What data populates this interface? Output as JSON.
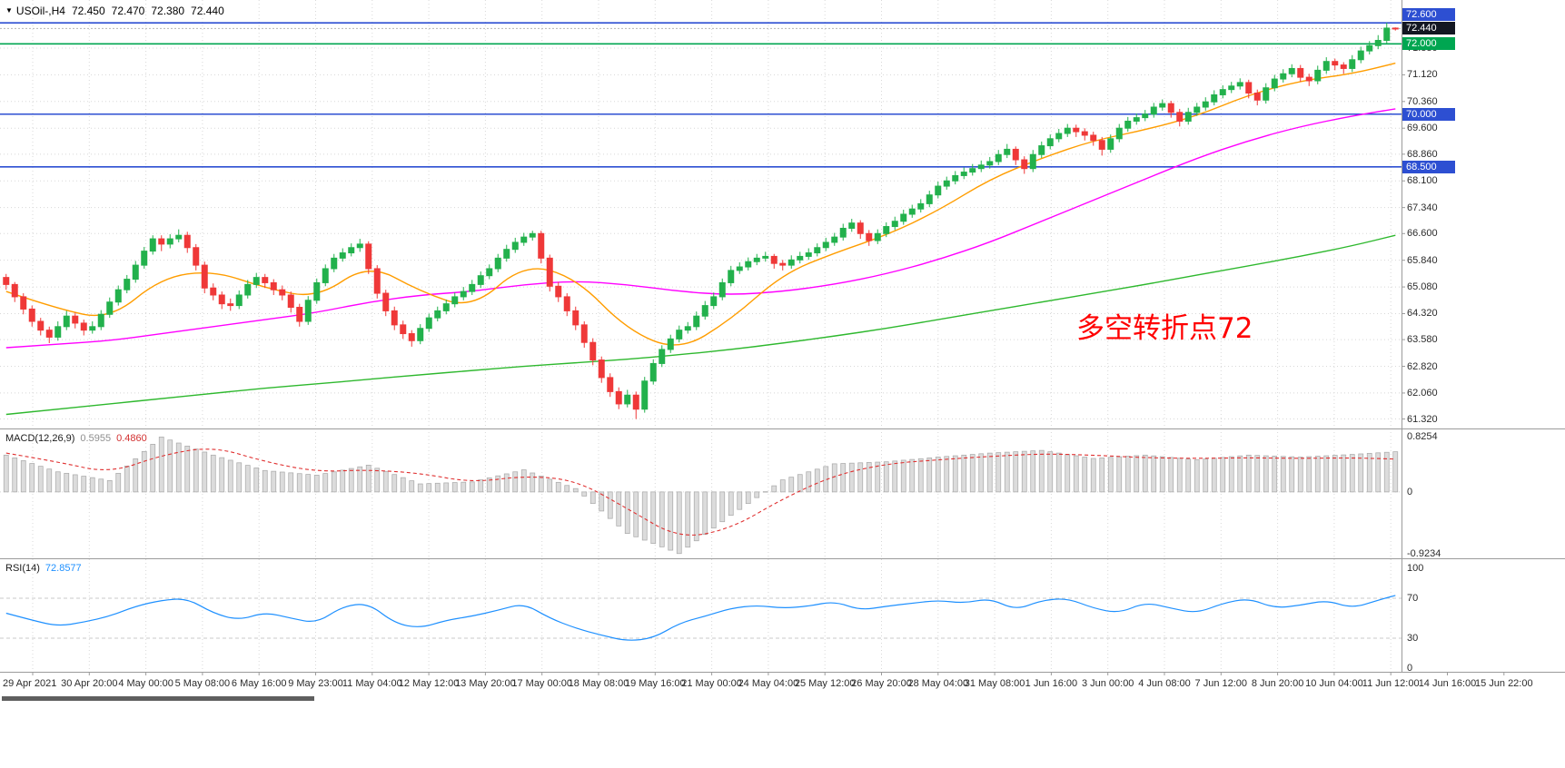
{
  "header": {
    "symbol_period": "USOil-,H4",
    "open": "72.450",
    "high": "72.470",
    "low": "72.380",
    "close": "72.440",
    "dropdown_icon": "▼"
  },
  "indicators": {
    "macd": {
      "name": "MACD(12,26,9)",
      "value_macd": "0.5955",
      "value_signal": "0.4860"
    },
    "rsi": {
      "name": "RSI(14)",
      "value": "72.8577"
    }
  },
  "annotation": {
    "text": "多空转折点72",
    "color": "#ff0000"
  },
  "palette": {
    "up": "#22b14c",
    "down": "#ef3838",
    "grid": "#d8d8d8",
    "axis_text": "#2b2b2b",
    "level_blue": "#2d4fd2",
    "level_green": "#00a651",
    "bid_badge": "#131722",
    "background": "#ffffff"
  },
  "chart_data": {
    "type": "candlestick+indicators",
    "symbol": "USOil-",
    "timeframe": "H4",
    "current_bar": {
      "open": 72.45,
      "high": 72.47,
      "low": 72.38,
      "close": 72.44
    },
    "axes": {
      "main": {
        "max": 73.25,
        "min": 61.05,
        "grid_labels": [
          71.88,
          71.12,
          70.36,
          69.6,
          68.86,
          68.1,
          67.34,
          66.6,
          65.84,
          65.08,
          64.32,
          63.58,
          62.82,
          62.06,
          61.32
        ]
      },
      "macd": {
        "max": 0.8254,
        "min": -0.9234,
        "labels": [
          0.8254,
          0,
          -0.9234
        ]
      },
      "rsi": {
        "labels": [
          100,
          70,
          30,
          0
        ],
        "levels": [
          70,
          30
        ]
      }
    },
    "badges": [
      {
        "label": "72.600",
        "value": 72.6,
        "bg": "#2d4fd2",
        "y": 16
      },
      {
        "label": "72.440",
        "value": 72.44,
        "bg": "#131722",
        "y": 31
      },
      {
        "label": "72.000",
        "value": 72.0,
        "bg": "#00a651"
      },
      {
        "label": "70.000",
        "value": 70.0,
        "bg": "#2d4fd2"
      },
      {
        "label": "68.500",
        "value": 68.5,
        "bg": "#2d4fd2"
      }
    ],
    "hlines": [
      {
        "value": 72.6,
        "color": "#2d4fd2",
        "width": 1.6
      },
      {
        "value": 72.0,
        "color": "#00a651",
        "width": 1.6
      },
      {
        "value": 70.0,
        "color": "#2d4fd2",
        "width": 1.6
      },
      {
        "value": 68.5,
        "color": "#2d4fd2",
        "width": 1.6
      }
    ],
    "bid_line": {
      "value": 72.44,
      "color": "#b5b5b5"
    },
    "time_labels": [
      "29 Apr 2021",
      "30 Apr 20:00",
      "4 May 00:00",
      "5 May 08:00",
      "6 May 16:00",
      "9 May 23:00",
      "11 May 04:00",
      "12 May 12:00",
      "13 May 20:00",
      "17 May 00:00",
      "18 May 08:00",
      "19 May 16:00",
      "21 May 00:00",
      "24 May 04:00",
      "25 May 12:00",
      "26 May 20:00",
      "28 May 04:00",
      "31 May 08:00",
      "1 Jun 16:00",
      "3 Jun 00:00",
      "4 Jun 08:00",
      "7 Jun 12:00",
      "8 Jun 20:00",
      "10 Jun 04:00",
      "11 Jun 12:00",
      "14 Jun 16:00",
      "15 Jun 22:00"
    ],
    "candles": [
      [
        65.35,
        65.45,
        65.0,
        65.15
      ],
      [
        65.15,
        65.22,
        64.65,
        64.8
      ],
      [
        64.8,
        64.9,
        64.3,
        64.45
      ],
      [
        64.45,
        64.55,
        63.95,
        64.1
      ],
      [
        64.1,
        64.2,
        63.7,
        63.85
      ],
      [
        63.85,
        63.95,
        63.48,
        63.65
      ],
      [
        63.65,
        64.1,
        63.55,
        63.95
      ],
      [
        63.95,
        64.4,
        63.85,
        64.25
      ],
      [
        64.25,
        64.35,
        63.9,
        64.05
      ],
      [
        64.05,
        64.15,
        63.7,
        63.85
      ],
      [
        63.85,
        64.1,
        63.75,
        63.95
      ],
      [
        63.95,
        64.42,
        63.85,
        64.3
      ],
      [
        64.3,
        64.78,
        64.2,
        64.65
      ],
      [
        64.65,
        65.12,
        64.55,
        65.0
      ],
      [
        65.0,
        65.42,
        64.9,
        65.3
      ],
      [
        65.3,
        65.82,
        65.2,
        65.7
      ],
      [
        65.7,
        66.22,
        65.6,
        66.1
      ],
      [
        66.1,
        66.55,
        66.0,
        66.45
      ],
      [
        66.45,
        66.55,
        66.1,
        66.3
      ],
      [
        66.3,
        66.58,
        66.18,
        66.45
      ],
      [
        66.45,
        66.72,
        66.35,
        66.55
      ],
      [
        66.55,
        66.65,
        66.05,
        66.2
      ],
      [
        66.2,
        66.3,
        65.55,
        65.7
      ],
      [
        65.7,
        65.8,
        64.9,
        65.05
      ],
      [
        65.05,
        65.18,
        64.7,
        64.85
      ],
      [
        64.85,
        64.95,
        64.45,
        64.6
      ],
      [
        64.6,
        64.75,
        64.4,
        64.55
      ],
      [
        64.55,
        64.98,
        64.45,
        64.85
      ],
      [
        64.85,
        65.28,
        64.75,
        65.15
      ],
      [
        65.15,
        65.48,
        65.05,
        65.35
      ],
      [
        65.35,
        65.45,
        65.05,
        65.2
      ],
      [
        65.2,
        65.3,
        64.85,
        65.0
      ],
      [
        65.0,
        65.12,
        64.7,
        64.85
      ],
      [
        64.85,
        64.95,
        64.35,
        64.5
      ],
      [
        64.5,
        64.6,
        63.95,
        64.1
      ],
      [
        64.1,
        64.82,
        64.0,
        64.7
      ],
      [
        64.7,
        65.32,
        64.6,
        65.2
      ],
      [
        65.2,
        65.72,
        65.1,
        65.6
      ],
      [
        65.6,
        66.02,
        65.5,
        65.9
      ],
      [
        65.9,
        66.18,
        65.8,
        66.05
      ],
      [
        66.05,
        66.32,
        65.95,
        66.2
      ],
      [
        66.2,
        66.45,
        66.08,
        66.3
      ],
      [
        66.3,
        66.38,
        65.45,
        65.6
      ],
      [
        65.6,
        65.7,
        64.75,
        64.9
      ],
      [
        64.9,
        65.0,
        64.25,
        64.4
      ],
      [
        64.4,
        64.52,
        63.85,
        64.0
      ],
      [
        64.0,
        64.12,
        63.6,
        63.75
      ],
      [
        63.75,
        63.85,
        63.38,
        63.55
      ],
      [
        63.55,
        64.02,
        63.45,
        63.9
      ],
      [
        63.9,
        64.32,
        63.8,
        64.2
      ],
      [
        64.2,
        64.52,
        64.1,
        64.4
      ],
      [
        64.4,
        64.72,
        64.3,
        64.6
      ],
      [
        64.6,
        64.92,
        64.5,
        64.8
      ],
      [
        64.8,
        65.08,
        64.7,
        64.95
      ],
      [
        64.95,
        65.28,
        64.85,
        65.15
      ],
      [
        65.15,
        65.52,
        65.05,
        65.4
      ],
      [
        65.4,
        65.72,
        65.3,
        65.6
      ],
      [
        65.6,
        66.02,
        65.5,
        65.9
      ],
      [
        65.9,
        66.28,
        65.8,
        66.15
      ],
      [
        66.15,
        66.48,
        66.05,
        66.35
      ],
      [
        66.35,
        66.62,
        66.25,
        66.5
      ],
      [
        66.5,
        66.68,
        66.4,
        66.6
      ],
      [
        66.6,
        66.68,
        65.75,
        65.9
      ],
      [
        65.9,
        66.0,
        64.95,
        65.1
      ],
      [
        65.1,
        65.22,
        64.65,
        64.8
      ],
      [
        64.8,
        64.9,
        64.25,
        64.4
      ],
      [
        64.4,
        64.52,
        63.85,
        64.0
      ],
      [
        64.0,
        64.1,
        63.35,
        63.5
      ],
      [
        63.5,
        63.62,
        62.85,
        63.0
      ],
      [
        63.0,
        63.1,
        62.35,
        62.5
      ],
      [
        62.5,
        62.62,
        61.95,
        62.1
      ],
      [
        62.1,
        62.22,
        61.6,
        61.75
      ],
      [
        61.75,
        62.15,
        61.65,
        62.0
      ],
      [
        62.0,
        62.1,
        61.32,
        61.6
      ],
      [
        61.6,
        62.52,
        61.5,
        62.4
      ],
      [
        62.4,
        63.02,
        62.3,
        62.9
      ],
      [
        62.9,
        63.42,
        62.8,
        63.3
      ],
      [
        63.3,
        63.72,
        63.2,
        63.6
      ],
      [
        63.6,
        63.98,
        63.5,
        63.85
      ],
      [
        63.85,
        64.08,
        63.75,
        63.95
      ],
      [
        63.95,
        64.38,
        63.85,
        64.25
      ],
      [
        64.25,
        64.68,
        64.15,
        64.55
      ],
      [
        64.55,
        64.92,
        64.45,
        64.8
      ],
      [
        64.8,
        65.32,
        64.7,
        65.2
      ],
      [
        65.2,
        65.68,
        65.1,
        65.55
      ],
      [
        65.55,
        65.78,
        65.45,
        65.65
      ],
      [
        65.65,
        65.92,
        65.55,
        65.8
      ],
      [
        65.8,
        66.02,
        65.7,
        65.9
      ],
      [
        65.9,
        66.08,
        65.8,
        65.95
      ],
      [
        65.95,
        66.02,
        65.6,
        65.75
      ],
      [
        65.75,
        65.85,
        65.55,
        65.7
      ],
      [
        65.7,
        65.98,
        65.6,
        65.85
      ],
      [
        65.85,
        66.08,
        65.75,
        65.95
      ],
      [
        65.95,
        66.18,
        65.85,
        66.05
      ],
      [
        66.05,
        66.32,
        65.95,
        66.2
      ],
      [
        66.2,
        66.48,
        66.1,
        66.35
      ],
      [
        66.35,
        66.62,
        66.25,
        66.5
      ],
      [
        66.5,
        66.88,
        66.4,
        66.75
      ],
      [
        66.75,
        67.02,
        66.65,
        66.9
      ],
      [
        66.9,
        66.98,
        66.45,
        66.6
      ],
      [
        66.6,
        66.7,
        66.25,
        66.4
      ],
      [
        66.4,
        66.72,
        66.3,
        66.6
      ],
      [
        66.6,
        66.92,
        66.5,
        66.8
      ],
      [
        66.8,
        67.08,
        66.7,
        66.95
      ],
      [
        66.95,
        67.28,
        66.85,
        67.15
      ],
      [
        67.15,
        67.42,
        67.05,
        67.3
      ],
      [
        67.3,
        67.58,
        67.2,
        67.45
      ],
      [
        67.45,
        67.82,
        67.35,
        67.7
      ],
      [
        67.7,
        68.08,
        67.6,
        67.95
      ],
      [
        67.95,
        68.22,
        67.85,
        68.1
      ],
      [
        68.1,
        68.38,
        68.0,
        68.25
      ],
      [
        68.25,
        68.48,
        68.15,
        68.35
      ],
      [
        68.35,
        68.58,
        68.25,
        68.45
      ],
      [
        68.45,
        68.68,
        68.35,
        68.55
      ],
      [
        68.55,
        68.78,
        68.45,
        68.65
      ],
      [
        68.65,
        68.98,
        68.55,
        68.85
      ],
      [
        68.85,
        69.15,
        68.75,
        69.0
      ],
      [
        69.0,
        69.08,
        68.55,
        68.7
      ],
      [
        68.7,
        68.8,
        68.3,
        68.45
      ],
      [
        68.45,
        68.98,
        68.35,
        68.85
      ],
      [
        68.85,
        69.22,
        68.75,
        69.1
      ],
      [
        69.1,
        69.42,
        69.0,
        69.3
      ],
      [
        69.3,
        69.58,
        69.2,
        69.45
      ],
      [
        69.45,
        69.72,
        69.35,
        69.6
      ],
      [
        69.6,
        69.7,
        69.35,
        69.5
      ],
      [
        69.5,
        69.6,
        69.25,
        69.4
      ],
      [
        69.4,
        69.5,
        69.1,
        69.25
      ],
      [
        69.25,
        69.35,
        68.82,
        69.0
      ],
      [
        69.0,
        69.42,
        68.9,
        69.3
      ],
      [
        69.3,
        69.72,
        69.2,
        69.6
      ],
      [
        69.6,
        69.92,
        69.5,
        69.8
      ],
      [
        69.8,
        70.02,
        69.7,
        69.9
      ],
      [
        69.9,
        70.12,
        69.8,
        70.0
      ],
      [
        70.0,
        70.32,
        69.9,
        70.2
      ],
      [
        70.2,
        70.42,
        70.1,
        70.3
      ],
      [
        70.3,
        70.38,
        69.9,
        70.05
      ],
      [
        70.05,
        70.15,
        69.65,
        69.8
      ],
      [
        69.8,
        70.18,
        69.7,
        70.05
      ],
      [
        70.05,
        70.32,
        69.95,
        70.2
      ],
      [
        70.2,
        70.48,
        70.1,
        70.35
      ],
      [
        70.35,
        70.68,
        70.25,
        70.55
      ],
      [
        70.55,
        70.82,
        70.45,
        70.7
      ],
      [
        70.7,
        70.92,
        70.6,
        70.8
      ],
      [
        70.8,
        71.02,
        70.7,
        70.9
      ],
      [
        70.9,
        70.98,
        70.45,
        70.6
      ],
      [
        70.6,
        70.7,
        70.25,
        70.4
      ],
      [
        70.4,
        70.88,
        70.3,
        70.75
      ],
      [
        70.75,
        71.12,
        70.65,
        71.0
      ],
      [
        71.0,
        71.28,
        70.9,
        71.15
      ],
      [
        71.15,
        71.42,
        71.05,
        71.3
      ],
      [
        71.3,
        71.4,
        70.92,
        71.05
      ],
      [
        71.05,
        71.15,
        70.8,
        70.95
      ],
      [
        70.95,
        71.38,
        70.85,
        71.25
      ],
      [
        71.25,
        71.62,
        71.15,
        71.5
      ],
      [
        71.5,
        71.58,
        71.25,
        71.4
      ],
      [
        71.4,
        71.48,
        71.15,
        71.3
      ],
      [
        71.3,
        71.68,
        71.2,
        71.55
      ],
      [
        71.55,
        71.92,
        71.45,
        71.8
      ],
      [
        71.8,
        72.08,
        71.7,
        71.95
      ],
      [
        71.95,
        72.25,
        71.85,
        72.1
      ],
      [
        72.1,
        72.6,
        72.0,
        72.45
      ],
      [
        72.45,
        72.47,
        72.38,
        72.44
      ]
    ],
    "ma_x": [
      0,
      6,
      12,
      18,
      24,
      30,
      36,
      42,
      48,
      54,
      60,
      66,
      72,
      78,
      84,
      90,
      96,
      102,
      108,
      114,
      120,
      126,
      132,
      138,
      144,
      150,
      156,
      161
    ],
    "ma": {
      "fast": {
        "color": "#ff9d00",
        "values": [
          64.95,
          64.45,
          64.15,
          65.35,
          65.55,
          65.05,
          64.75,
          65.75,
          64.95,
          64.45,
          65.75,
          65.35,
          63.85,
          63.25,
          64.15,
          65.45,
          66.05,
          66.55,
          67.25,
          68.15,
          68.75,
          69.25,
          69.55,
          69.95,
          70.55,
          70.95,
          71.15,
          71.45
        ]
      },
      "mid": {
        "color": "#ff00ff",
        "values": [
          63.35,
          63.45,
          63.55,
          63.75,
          63.95,
          64.15,
          64.35,
          64.65,
          64.85,
          64.95,
          65.15,
          65.25,
          65.15,
          64.95,
          64.85,
          64.95,
          65.15,
          65.45,
          65.85,
          66.35,
          66.95,
          67.55,
          68.15,
          68.75,
          69.25,
          69.65,
          69.95,
          70.15
        ]
      },
      "slow": {
        "color": "#2eb82e",
        "values": [
          61.45,
          61.6,
          61.75,
          61.9,
          62.05,
          62.2,
          62.32,
          62.45,
          62.58,
          62.7,
          62.82,
          62.92,
          63.02,
          63.15,
          63.3,
          63.48,
          63.68,
          63.9,
          64.15,
          64.4,
          64.65,
          64.9,
          65.15,
          65.42,
          65.68,
          65.95,
          66.25,
          66.55
        ]
      }
    },
    "macd": {
      "hist_color": "#dcdcdc",
      "hist_stroke": "#ababab",
      "signal_color": "#e03030",
      "hist": [
        0.55,
        0.3,
        0.17,
        0.82,
        0.55,
        0.32,
        0.25,
        0.4,
        0.12,
        0.15,
        0.33,
        0.05,
        -0.62,
        -0.92,
        -0.35,
        0.18,
        0.42,
        0.45,
        0.52,
        0.58,
        0.62,
        0.5,
        0.55,
        0.48,
        0.55,
        0.52,
        0.56,
        0.6
      ],
      "signal": [
        0.58,
        0.45,
        0.28,
        0.55,
        0.68,
        0.45,
        0.3,
        0.33,
        0.28,
        0.14,
        0.24,
        0.18,
        -0.25,
        -0.7,
        -0.55,
        -0.1,
        0.25,
        0.42,
        0.48,
        0.53,
        0.57,
        0.55,
        0.51,
        0.5,
        0.51,
        0.5,
        0.51,
        0.49
      ]
    },
    "rsi": {
      "color": "#1e90ff",
      "x": [
        0,
        3,
        6,
        9,
        12,
        15,
        18,
        21,
        24,
        27,
        30,
        33,
        36,
        39,
        42,
        45,
        48,
        51,
        54,
        57,
        60,
        63,
        66,
        69,
        72,
        75,
        78,
        81,
        84,
        87,
        90,
        93,
        96,
        99,
        102,
        105,
        108,
        111,
        114,
        117,
        120,
        123,
        126,
        129,
        132,
        135,
        138,
        141,
        144,
        147,
        150,
        153,
        156,
        159,
        161
      ],
      "values": [
        55,
        48,
        42,
        46,
        52,
        62,
        68,
        70,
        55,
        48,
        56,
        50,
        45,
        62,
        65,
        45,
        40,
        48,
        52,
        58,
        65,
        50,
        40,
        33,
        27,
        30,
        45,
        52,
        60,
        63,
        60,
        62,
        67,
        58,
        62,
        65,
        68,
        65,
        70,
        58,
        68,
        70,
        60,
        55,
        66,
        60,
        55,
        65,
        70,
        60,
        63,
        68,
        60,
        68,
        72.86
      ]
    }
  }
}
